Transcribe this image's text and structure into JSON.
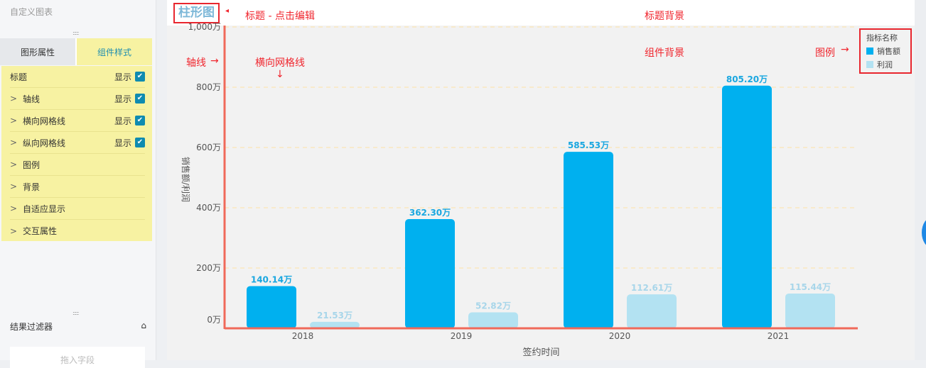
{
  "sidebar": {
    "header": "自定义图表",
    "tabs": [
      "图形属性",
      "组件样式"
    ],
    "items": [
      {
        "label": "标题",
        "show": "显示",
        "checked": true,
        "expandable": false
      },
      {
        "label": "轴线",
        "show": "显示",
        "checked": true,
        "expandable": true
      },
      {
        "label": "横向网格线",
        "show": "显示",
        "checked": true,
        "expandable": true
      },
      {
        "label": "纵向网格线",
        "show": "显示",
        "checked": true,
        "expandable": true
      },
      {
        "label": "图例",
        "expandable": true
      },
      {
        "label": "背景",
        "expandable": true
      },
      {
        "label": "自适应显示",
        "expandable": true
      },
      {
        "label": "交互属性",
        "expandable": true
      }
    ],
    "filter_title": "结果过滤器",
    "drop_placeholder": "拖入字段"
  },
  "annotations": {
    "title": "标题 - 点击编辑",
    "title_bg": "标题背景",
    "axis": "轴线",
    "hgrid": "横向网格线",
    "component_bg": "组件背景",
    "legend": "图例"
  },
  "chart_data": {
    "type": "bar",
    "title": "柱形图",
    "categories": [
      "2018",
      "2019",
      "2020",
      "2021"
    ],
    "series": [
      {
        "name": "销售额",
        "values": [
          140.14,
          362.3,
          585.53,
          805.2
        ],
        "labels": [
          "140.14万",
          "362.30万",
          "585.53万",
          "805.20万"
        ],
        "color": "#00b0ef"
      },
      {
        "name": "利润",
        "values": [
          21.53,
          52.82,
          112.61,
          115.44
        ],
        "labels": [
          "21.53万",
          "52.82万",
          "112.61万",
          "115.44万"
        ],
        "color": "#b3e2f2"
      }
    ],
    "xlabel": "签约时间",
    "ylabel": "销售额/利润",
    "ylim": [
      0,
      1000
    ],
    "yticks": [
      0,
      200,
      400,
      600,
      800,
      1000
    ],
    "ytick_labels": [
      "0万",
      "200万",
      "400万",
      "600万",
      "800万",
      "1,000万"
    ],
    "legend_title": "指标名称",
    "legend_position": "top-right",
    "axis_color": "#f0695a",
    "grid_color": "#fde3a7"
  }
}
